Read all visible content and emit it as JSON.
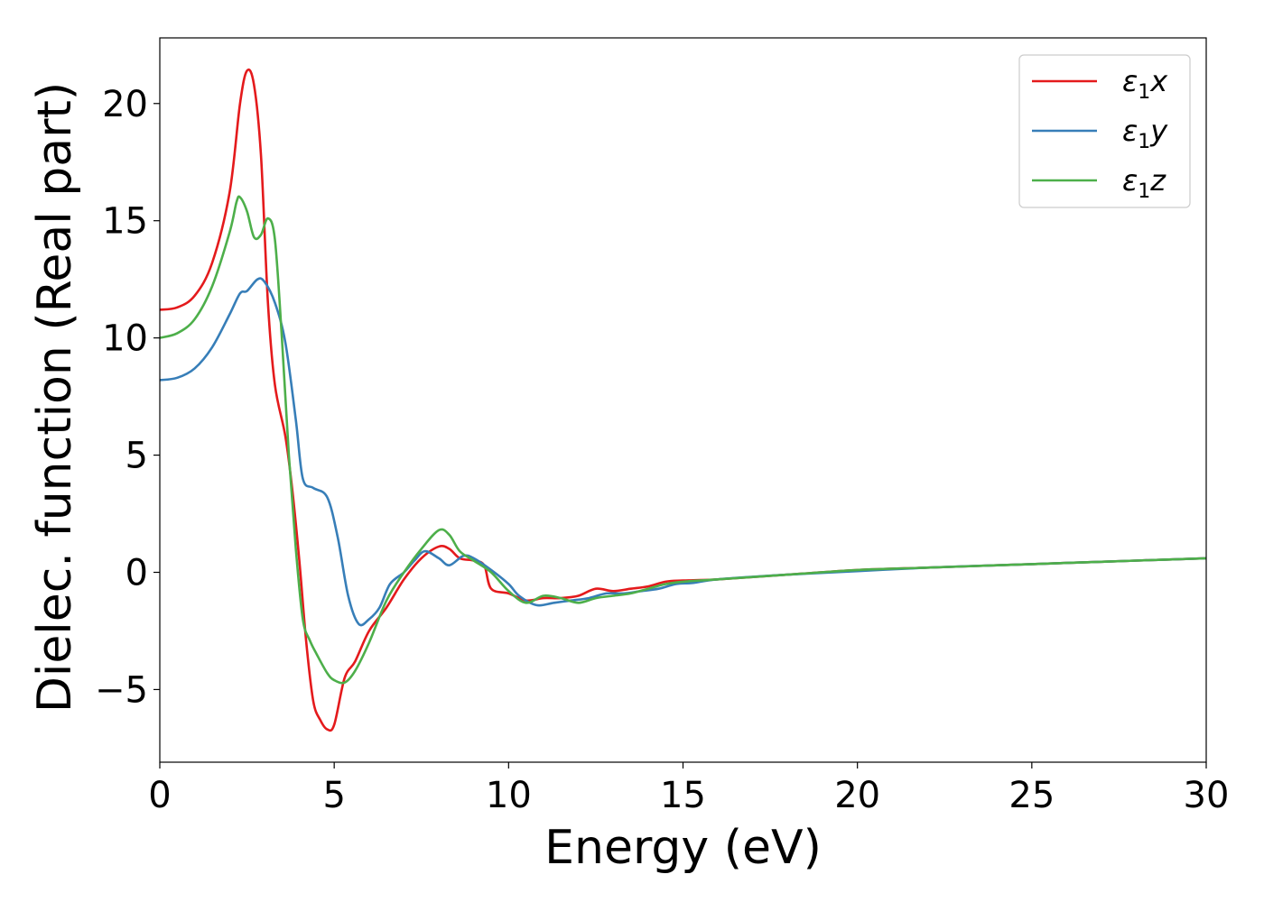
{
  "chart_data": {
    "type": "line",
    "title": "",
    "xlabel": "Energy (eV)",
    "ylabel": "Dielec. function (Real part)",
    "xlim": [
      0,
      30
    ],
    "ylim": [
      -8.1,
      22.8
    ],
    "xticks": [
      0,
      5,
      10,
      15,
      20,
      25,
      30
    ],
    "yticks": [
      -5,
      0,
      5,
      10,
      15,
      20
    ],
    "xtick_labels": [
      "0",
      "5",
      "10",
      "15",
      "20",
      "25",
      "30"
    ],
    "ytick_labels": [
      "−5",
      "0",
      "5",
      "10",
      "15",
      "20"
    ],
    "grid": false,
    "legend_position": "top-right",
    "series": [
      {
        "name": "ε1x",
        "legend_main": "ε",
        "legend_sub": "1",
        "legend_tail": "x",
        "color": "#e41a1c",
        "points": [
          [
            0.0,
            11.2
          ],
          [
            0.5,
            11.3
          ],
          [
            1.0,
            11.8
          ],
          [
            1.5,
            13.2
          ],
          [
            2.0,
            16.2
          ],
          [
            2.3,
            20.0
          ],
          [
            2.5,
            21.4
          ],
          [
            2.7,
            20.8
          ],
          [
            2.9,
            17.8
          ],
          [
            3.1,
            11.5
          ],
          [
            3.3,
            8.0
          ],
          [
            3.6,
            5.8
          ],
          [
            3.8,
            3.5
          ],
          [
            4.0,
            0.5
          ],
          [
            4.2,
            -3.0
          ],
          [
            4.4,
            -5.5
          ],
          [
            4.6,
            -6.3
          ],
          [
            4.8,
            -6.7
          ],
          [
            5.0,
            -6.5
          ],
          [
            5.3,
            -4.5
          ],
          [
            5.6,
            -3.8
          ],
          [
            6.0,
            -2.5
          ],
          [
            6.5,
            -1.5
          ],
          [
            7.0,
            -0.3
          ],
          [
            7.5,
            0.6
          ],
          [
            8.0,
            1.1
          ],
          [
            8.3,
            1.0
          ],
          [
            8.6,
            0.6
          ],
          [
            9.0,
            0.5
          ],
          [
            9.3,
            0.3
          ],
          [
            9.5,
            -0.7
          ],
          [
            10.0,
            -0.9
          ],
          [
            10.5,
            -1.2
          ],
          [
            11.0,
            -1.1
          ],
          [
            11.5,
            -1.1
          ],
          [
            12.0,
            -1.0
          ],
          [
            12.5,
            -0.7
          ],
          [
            13.0,
            -0.8
          ],
          [
            13.5,
            -0.7
          ],
          [
            14.0,
            -0.6
          ],
          [
            14.5,
            -0.4
          ],
          [
            15.0,
            -0.35
          ],
          [
            16.0,
            -0.3
          ],
          [
            18.0,
            -0.1
          ],
          [
            20.0,
            0.1
          ],
          [
            22.0,
            0.2
          ],
          [
            24.0,
            0.3
          ],
          [
            26.0,
            0.4
          ],
          [
            28.0,
            0.5
          ],
          [
            30.0,
            0.6
          ]
        ]
      },
      {
        "name": "ε1y",
        "legend_main": "ε",
        "legend_sub": "1",
        "legend_tail": "y",
        "color": "#377eb8",
        "points": [
          [
            0.0,
            8.2
          ],
          [
            0.5,
            8.3
          ],
          [
            1.0,
            8.7
          ],
          [
            1.5,
            9.6
          ],
          [
            2.0,
            11.0
          ],
          [
            2.3,
            11.9
          ],
          [
            2.5,
            12.0
          ],
          [
            2.8,
            12.5
          ],
          [
            3.0,
            12.4
          ],
          [
            3.3,
            11.5
          ],
          [
            3.6,
            9.8
          ],
          [
            3.9,
            6.5
          ],
          [
            4.1,
            4.0
          ],
          [
            4.4,
            3.6
          ],
          [
            4.8,
            3.2
          ],
          [
            5.1,
            1.5
          ],
          [
            5.4,
            -1.0
          ],
          [
            5.7,
            -2.2
          ],
          [
            6.0,
            -2.0
          ],
          [
            6.3,
            -1.5
          ],
          [
            6.6,
            -0.5
          ],
          [
            7.0,
            0.0
          ],
          [
            7.3,
            0.5
          ],
          [
            7.6,
            0.9
          ],
          [
            8.0,
            0.6
          ],
          [
            8.3,
            0.3
          ],
          [
            8.7,
            0.7
          ],
          [
            9.0,
            0.6
          ],
          [
            9.5,
            0.1
          ],
          [
            10.0,
            -0.5
          ],
          [
            10.3,
            -1.0
          ],
          [
            10.8,
            -1.4
          ],
          [
            11.3,
            -1.3
          ],
          [
            11.8,
            -1.2
          ],
          [
            12.3,
            -1.1
          ],
          [
            12.8,
            -0.9
          ],
          [
            13.3,
            -0.9
          ],
          [
            13.8,
            -0.8
          ],
          [
            14.3,
            -0.7
          ],
          [
            14.8,
            -0.5
          ],
          [
            15.3,
            -0.45
          ],
          [
            16.0,
            -0.3
          ],
          [
            18.0,
            -0.1
          ],
          [
            20.0,
            0.05
          ],
          [
            22.0,
            0.2
          ],
          [
            24.0,
            0.3
          ],
          [
            26.0,
            0.4
          ],
          [
            28.0,
            0.5
          ],
          [
            30.0,
            0.6
          ]
        ]
      },
      {
        "name": "ε1z",
        "legend_main": "ε",
        "legend_sub": "1",
        "legend_tail": "z",
        "color": "#4daf4a",
        "points": [
          [
            0.0,
            10.0
          ],
          [
            0.5,
            10.2
          ],
          [
            1.0,
            10.8
          ],
          [
            1.5,
            12.2
          ],
          [
            2.0,
            14.5
          ],
          [
            2.2,
            15.8
          ],
          [
            2.3,
            16.0
          ],
          [
            2.5,
            15.4
          ],
          [
            2.7,
            14.3
          ],
          [
            2.9,
            14.4
          ],
          [
            3.1,
            15.1
          ],
          [
            3.3,
            14.2
          ],
          [
            3.5,
            10.0
          ],
          [
            3.7,
            5.0
          ],
          [
            3.9,
            1.0
          ],
          [
            4.1,
            -2.0
          ],
          [
            4.3,
            -2.9
          ],
          [
            4.5,
            -3.5
          ],
          [
            4.8,
            -4.3
          ],
          [
            5.0,
            -4.6
          ],
          [
            5.3,
            -4.7
          ],
          [
            5.6,
            -4.2
          ],
          [
            6.0,
            -3.0
          ],
          [
            6.5,
            -1.2
          ],
          [
            7.0,
            0.0
          ],
          [
            7.5,
            1.0
          ],
          [
            8.0,
            1.8
          ],
          [
            8.3,
            1.6
          ],
          [
            8.6,
            0.9
          ],
          [
            9.0,
            0.5
          ],
          [
            9.5,
            0.0
          ],
          [
            10.0,
            -0.8
          ],
          [
            10.5,
            -1.3
          ],
          [
            11.0,
            -1.0
          ],
          [
            11.5,
            -1.1
          ],
          [
            12.0,
            -1.3
          ],
          [
            12.5,
            -1.1
          ],
          [
            13.0,
            -1.0
          ],
          [
            13.5,
            -0.9
          ],
          [
            14.0,
            -0.7
          ],
          [
            14.5,
            -0.5
          ],
          [
            15.0,
            -0.4
          ],
          [
            16.0,
            -0.3
          ],
          [
            18.0,
            -0.1
          ],
          [
            20.0,
            0.1
          ],
          [
            22.0,
            0.2
          ],
          [
            24.0,
            0.3
          ],
          [
            26.0,
            0.4
          ],
          [
            28.0,
            0.5
          ],
          [
            30.0,
            0.6
          ]
        ]
      }
    ]
  }
}
